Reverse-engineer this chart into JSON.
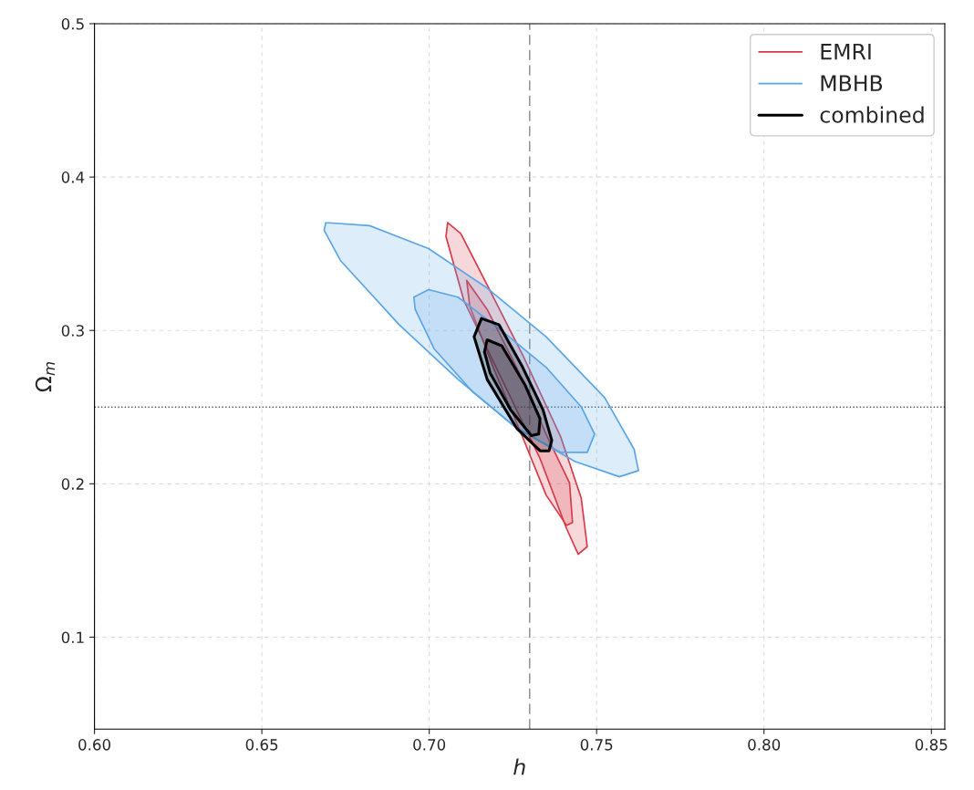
{
  "chart_data": {
    "type": "area",
    "xlabel": "h",
    "ylabel": "Ω$_{m}$",
    "xlim": [
      0.6,
      0.854
    ],
    "ylim": [
      0.04,
      0.5
    ],
    "xticks": [
      {
        "value": 0.6,
        "label": "0.60"
      },
      {
        "value": 0.65,
        "label": "0.65"
      },
      {
        "value": 0.7,
        "label": "0.70"
      },
      {
        "value": 0.75,
        "label": "0.75"
      },
      {
        "value": 0.8,
        "label": "0.80"
      },
      {
        "value": 0.85,
        "label": "0.85"
      }
    ],
    "yticks": [
      0.1,
      0.2,
      0.3,
      0.4,
      0.5
    ],
    "grid": true,
    "legend": "top right",
    "ref_lines": [
      {
        "axis": "x",
        "value": 0.73,
        "color": "#888888",
        "line_style": "dashed"
      },
      {
        "axis": "y",
        "value": 0.25,
        "color": "#555555",
        "line_style": "dotted"
      }
    ],
    "series": [
      {
        "name": "EMRI",
        "color": "#d93a48",
        "x": [
          0.7055,
          0.7094,
          0.7173,
          0.7279,
          0.7393,
          0.7454,
          0.7472,
          0.7445,
          0.741,
          0.7331,
          0.7217,
          0.7103,
          0.705
        ],
        "values": [
          0.3703,
          0.3633,
          0.3296,
          0.284,
          0.2304,
          0.1907,
          0.159,
          0.154,
          0.1709,
          0.2165,
          0.2681,
          0.3197,
          0.3613
        ]
      },
      {
        "color": "#d93a48",
        "x": [
          0.7112,
          0.7173,
          0.7261,
          0.7349,
          0.7419,
          0.7428,
          0.741,
          0.7349,
          0.7279,
          0.7191,
          0.7121
        ],
        "values": [
          0.3326,
          0.3137,
          0.276,
          0.2324,
          0.2006,
          0.1748,
          0.1729,
          0.1927,
          0.2304,
          0.276,
          0.3157
        ]
      },
      {
        "name": "MBHB",
        "color": "#5aa5e6",
        "x": [
          0.6691,
          0.6822,
          0.6998,
          0.7173,
          0.7349,
          0.7524,
          0.7612,
          0.7625,
          0.7568,
          0.7436,
          0.7261,
          0.7086,
          0.691,
          0.6735,
          0.6686
        ],
        "values": [
          0.3703,
          0.3683,
          0.3534,
          0.3276,
          0.2959,
          0.2562,
          0.2225,
          0.2086,
          0.2046,
          0.2145,
          0.2363,
          0.2681,
          0.3038,
          0.3455,
          0.3653
        ]
      },
      {
        "color": "#5aa5e6",
        "x": [
          0.6954,
          0.6998,
          0.7086,
          0.7217,
          0.7349,
          0.7454,
          0.7494,
          0.7472,
          0.7393,
          0.7261,
          0.7129,
          0.7015,
          0.6958
        ],
        "values": [
          0.3217,
          0.3266,
          0.3217,
          0.2998,
          0.276,
          0.2502,
          0.2324,
          0.2205,
          0.2205,
          0.2363,
          0.2601,
          0.2879,
          0.3137
        ]
      },
      {
        "name": "combined",
        "color": "#000000",
        "x": [
          0.7156,
          0.7208,
          0.7279,
          0.734,
          0.7366,
          0.7358,
          0.7331,
          0.7261,
          0.7173,
          0.7134
        ],
        "values": [
          0.3078,
          0.3038,
          0.276,
          0.2482,
          0.2284,
          0.2215,
          0.2215,
          0.2363,
          0.2681,
          0.2959
        ]
      },
      {
        "color": "#000000",
        "x": [
          0.7173,
          0.7217,
          0.7287,
          0.7331,
          0.7327,
          0.7305,
          0.7243,
          0.7182,
          0.7165
        ],
        "values": [
          0.2939,
          0.2899,
          0.2641,
          0.2423,
          0.2324,
          0.2314,
          0.2482,
          0.2721,
          0.286
        ]
      }
    ]
  }
}
